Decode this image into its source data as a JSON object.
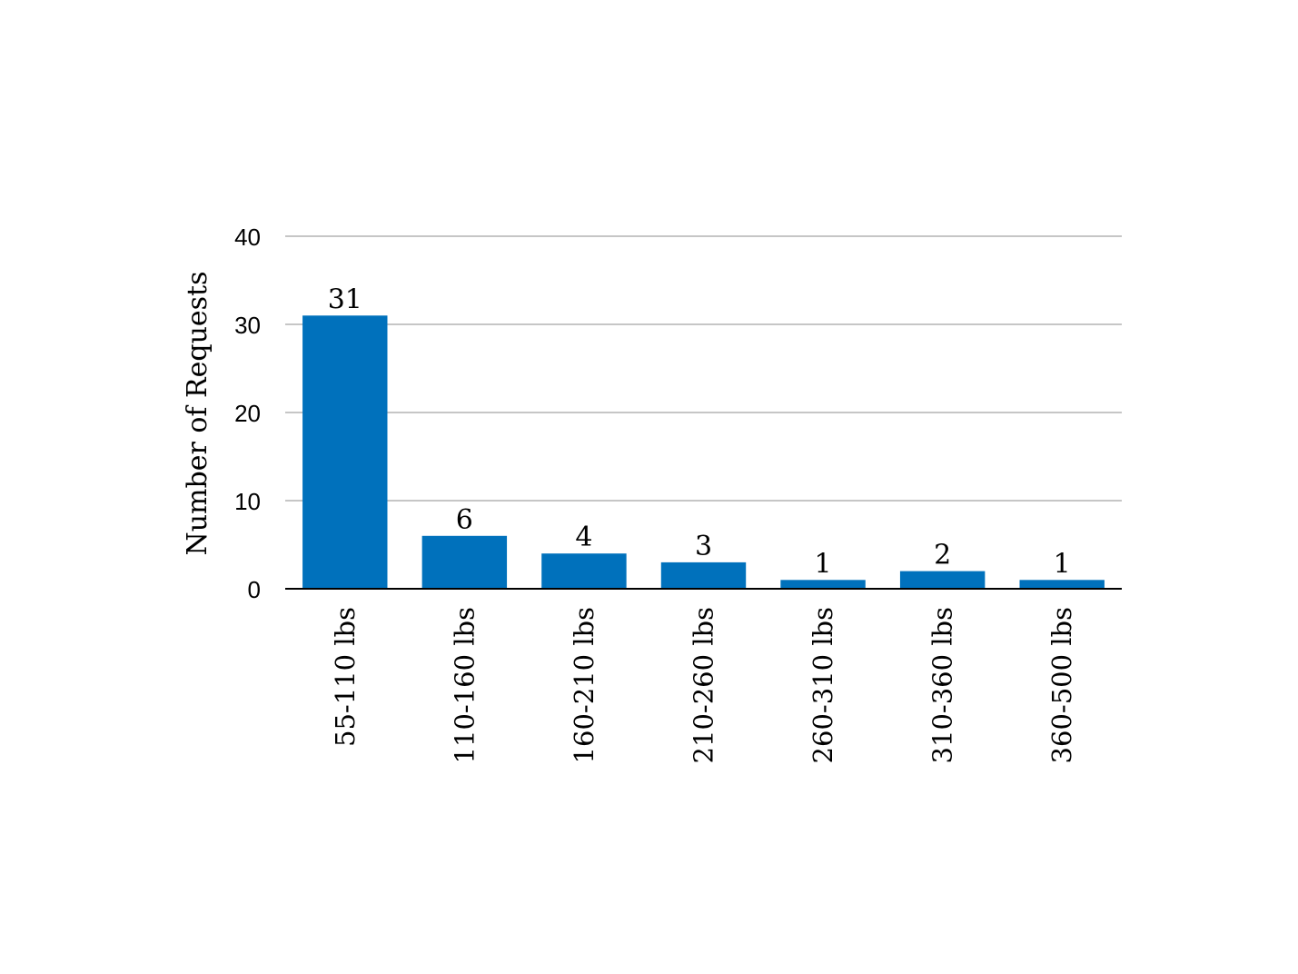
{
  "chart_data": {
    "type": "bar",
    "categories": [
      "55-110 lbs",
      "110-160 lbs",
      "160-210 lbs",
      "210-260 lbs",
      "260-310 lbs",
      "310-360 lbs",
      "360-500 lbs"
    ],
    "values": [
      31,
      6,
      4,
      3,
      1,
      2,
      1
    ],
    "data_labels": [
      "31",
      "6",
      "4",
      "3",
      "1",
      "2",
      "1"
    ],
    "title": "",
    "xlabel": "",
    "ylabel": "Number of Requests",
    "ylim": [
      0,
      40
    ],
    "yticks": [
      0,
      10,
      20,
      30,
      40
    ],
    "ytick_labels": [
      "0",
      "10",
      "20",
      "30",
      "40"
    ],
    "grid": true,
    "legend": "none",
    "colors": {
      "bar": "#0071bc",
      "gridline": "#b3b3b3",
      "baseline": "#000000"
    }
  }
}
